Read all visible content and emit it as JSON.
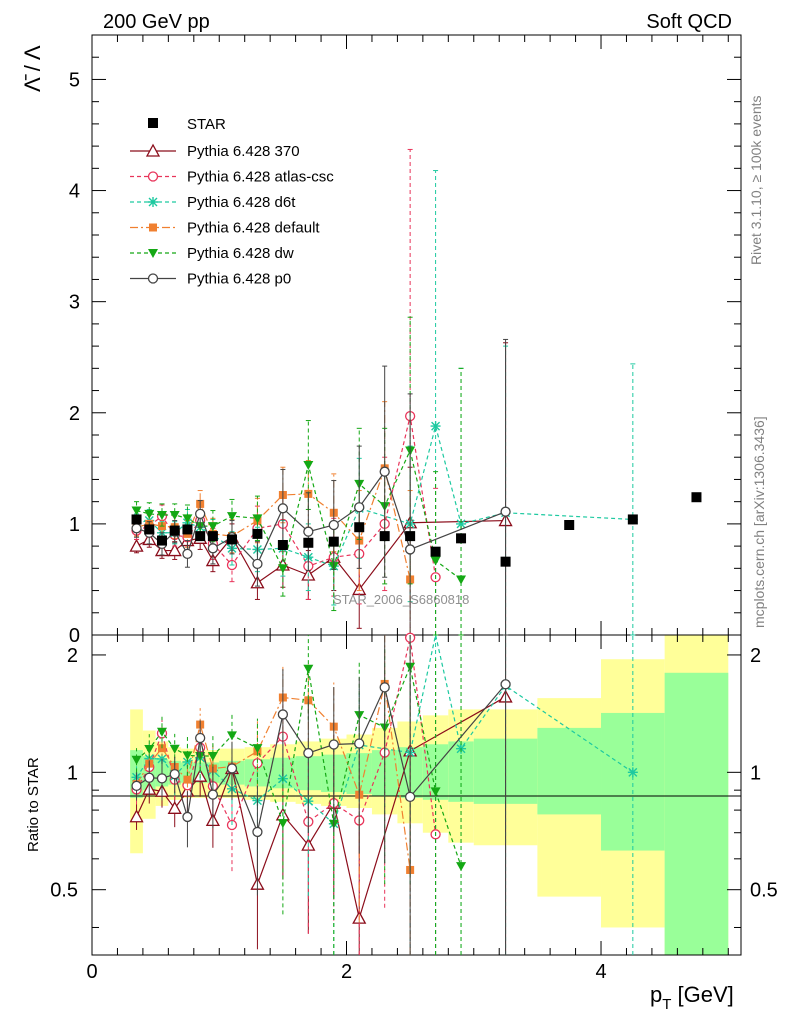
{
  "chart_data": {
    "type": "scatter",
    "header_left": "200 GeV pp",
    "header_right": "Soft QCD",
    "ylabel_main": "Λ̄ / Λ",
    "ylabel_ratio": "Ratio to STAR",
    "xlabel": "p_T [GeV]",
    "side_label_top": "Rivet 3.1.10, ≥ 100k events",
    "side_label_bottom": "mcplots.cern.ch [arXiv:1306.3436]",
    "analysis_label": "STAR_2006_S6860818",
    "xlim": [
      0,
      5.1
    ],
    "ylim_main": [
      0,
      5.4
    ],
    "ylim_ratio": [
      0.34,
      2.25
    ],
    "x_ticks": [
      0,
      2,
      4
    ],
    "y_ticks_main": [
      0,
      1,
      2,
      3,
      4,
      5
    ],
    "y_ticks_ratio": [
      0.5,
      1,
      2
    ],
    "star": {
      "name": "STAR",
      "color": "#000000",
      "x": [
        0.35,
        0.45,
        0.55,
        0.65,
        0.75,
        0.85,
        0.95,
        1.1,
        1.3,
        1.5,
        1.7,
        1.9,
        2.1,
        2.3,
        2.5,
        2.7,
        2.9,
        3.25,
        3.75,
        4.25,
        4.75
      ],
      "y": [
        1.04,
        0.95,
        0.85,
        0.94,
        0.95,
        0.89,
        0.89,
        0.86,
        0.91,
        0.81,
        0.83,
        0.84,
        0.97,
        0.89,
        0.89,
        0.75,
        0.87,
        0.66,
        0.99,
        1.04,
        1.24
      ]
    },
    "band": {
      "edges": [
        0.3,
        0.4,
        0.5,
        0.6,
        0.7,
        0.8,
        0.9,
        1.0,
        1.2,
        1.4,
        1.6,
        1.8,
        2.0,
        2.2,
        2.4,
        2.6,
        2.8,
        3.0,
        3.5,
        4.0,
        4.5,
        5.0
      ],
      "green_lo": [
        0.86,
        0.9,
        0.92,
        0.93,
        0.94,
        0.94,
        0.94,
        0.93,
        0.92,
        0.91,
        0.9,
        0.89,
        0.88,
        0.87,
        0.86,
        0.85,
        0.84,
        0.83,
        0.78,
        0.63,
        0.34
      ],
      "green_hi": [
        1.14,
        1.1,
        1.08,
        1.07,
        1.06,
        1.06,
        1.06,
        1.07,
        1.08,
        1.09,
        1.1,
        1.11,
        1.12,
        1.14,
        1.16,
        1.18,
        1.2,
        1.22,
        1.3,
        1.42,
        1.8
      ],
      "yellow_lo": [
        0.62,
        0.76,
        0.82,
        0.85,
        0.86,
        0.86,
        0.86,
        0.86,
        0.85,
        0.84,
        0.83,
        0.82,
        0.81,
        0.78,
        0.74,
        0.7,
        0.66,
        0.65,
        0.48,
        0.4,
        0.34
      ],
      "yellow_hi": [
        1.45,
        1.28,
        1.2,
        1.16,
        1.15,
        1.14,
        1.14,
        1.15,
        1.16,
        1.18,
        1.2,
        1.22,
        1.25,
        1.3,
        1.35,
        1.4,
        1.45,
        1.45,
        1.55,
        1.95,
        2.25
      ]
    },
    "series": [
      {
        "name": "Pythia 6.428 370",
        "color": "#8b0d1b",
        "dash": "",
        "marker": "triangle-open",
        "x": [
          0.35,
          0.45,
          0.55,
          0.65,
          0.75,
          0.85,
          0.95,
          1.1,
          1.3,
          1.5,
          1.7,
          1.9,
          2.1,
          2.5,
          3.25
        ],
        "y": [
          0.8,
          0.86,
          0.76,
          0.76,
          0.85,
          0.87,
          0.67,
          0.88,
          0.47,
          0.63,
          0.54,
          0.7,
          0.41,
          1.01,
          1.03
        ],
        "err": [
          0.06,
          0.07,
          0.07,
          0.08,
          0.1,
          0.1,
          0.1,
          0.12,
          0.15,
          0.2,
          0.22,
          0.3,
          0.35,
          0.5,
          1.6
        ]
      },
      {
        "name": "Pythia 6.428 atlas-csc",
        "color": "#e8345a",
        "dash": "4,3",
        "marker": "circle-open",
        "x": [
          0.35,
          0.45,
          0.55,
          0.65,
          0.75,
          0.85,
          0.95,
          1.1,
          1.3,
          1.5,
          1.7,
          1.9,
          2.1,
          2.3,
          2.5,
          2.7
        ],
        "y": [
          0.94,
          0.98,
          1.07,
          0.9,
          0.88,
          1.03,
          0.82,
          0.63,
          0.96,
          1.0,
          0.62,
          0.7,
          0.73,
          1.0,
          1.97,
          0.52
        ],
        "err": [
          0.08,
          0.1,
          0.1,
          0.1,
          0.12,
          0.12,
          0.14,
          0.15,
          0.2,
          0.25,
          0.3,
          0.35,
          0.45,
          0.6,
          2.4,
          0.8
        ]
      },
      {
        "name": "Pythia 6.428 d6t",
        "color": "#1dc9a0",
        "dash": "4,3",
        "marker": "star",
        "x": [
          0.35,
          0.45,
          0.55,
          0.65,
          0.75,
          0.85,
          0.95,
          1.1,
          1.3,
          1.5,
          1.7,
          1.9,
          2.1,
          2.5,
          2.7,
          2.9,
          3.25,
          4.25
        ],
        "y": [
          1.01,
          1.03,
          0.92,
          0.92,
          1.01,
          0.97,
          0.9,
          0.78,
          0.77,
          0.78,
          0.7,
          0.62,
          1.14,
          1.0,
          1.88,
          1.0,
          1.1,
          1.04
        ],
        "err": [
          0.08,
          0.1,
          0.1,
          0.1,
          0.12,
          0.12,
          0.14,
          0.15,
          0.2,
          0.25,
          0.3,
          0.35,
          0.45,
          0.7,
          2.3,
          1.4,
          1.5,
          1.4
        ]
      },
      {
        "name": "Pythia 6.428 default",
        "color": "#f08030",
        "dash": "8,3,2,3",
        "marker": "square",
        "x": [
          0.35,
          0.45,
          0.55,
          0.65,
          0.75,
          0.85,
          0.95,
          1.1,
          1.3,
          1.5,
          1.7,
          1.9,
          2.1,
          2.3,
          2.5
        ],
        "y": [
          0.97,
          1.0,
          0.98,
          0.97,
          0.91,
          1.18,
          0.91,
          0.89,
          1.03,
          1.26,
          1.27,
          1.1,
          0.85,
          1.5,
          0.5
        ],
        "err": [
          0.08,
          0.1,
          0.1,
          0.1,
          0.12,
          0.12,
          0.14,
          0.15,
          0.2,
          0.25,
          0.3,
          0.35,
          0.45,
          0.6,
          0.8
        ]
      },
      {
        "name": "Pythia 6.428 dw",
        "color": "#14a814",
        "dash": "4,3",
        "marker": "triangle-down",
        "x": [
          0.35,
          0.45,
          0.55,
          0.65,
          0.75,
          0.85,
          0.95,
          1.1,
          1.3,
          1.5,
          1.7,
          1.9,
          2.1,
          2.3,
          2.5,
          2.7,
          2.9
        ],
        "y": [
          1.12,
          1.09,
          1.08,
          1.08,
          1.05,
          0.98,
          0.98,
          1.07,
          1.05,
          0.6,
          1.53,
          0.62,
          1.36,
          1.16,
          1.66,
          0.67,
          0.5
        ],
        "err": [
          0.08,
          0.1,
          0.1,
          0.1,
          0.12,
          0.12,
          0.14,
          0.15,
          0.2,
          0.25,
          0.4,
          0.4,
          0.5,
          0.7,
          1.2,
          0.8,
          1.9
        ]
      },
      {
        "name": "Pythia 6.428 p0",
        "color": "#444444",
        "dash": "",
        "marker": "circle-open",
        "x": [
          0.35,
          0.45,
          0.55,
          0.65,
          0.75,
          0.85,
          0.95,
          1.1,
          1.3,
          1.5,
          1.7,
          1.9,
          2.1,
          2.3,
          2.5,
          3.25
        ],
        "y": [
          0.96,
          0.92,
          0.82,
          0.93,
          0.73,
          1.09,
          0.78,
          0.88,
          0.64,
          1.14,
          0.93,
          0.99,
          1.15,
          1.47,
          0.77,
          1.11
        ],
        "err": [
          0.08,
          0.1,
          0.1,
          0.1,
          0.12,
          0.12,
          0.14,
          0.15,
          0.2,
          0.35,
          0.35,
          0.4,
          0.55,
          0.95,
          1.4,
          1.55
        ]
      }
    ]
  }
}
